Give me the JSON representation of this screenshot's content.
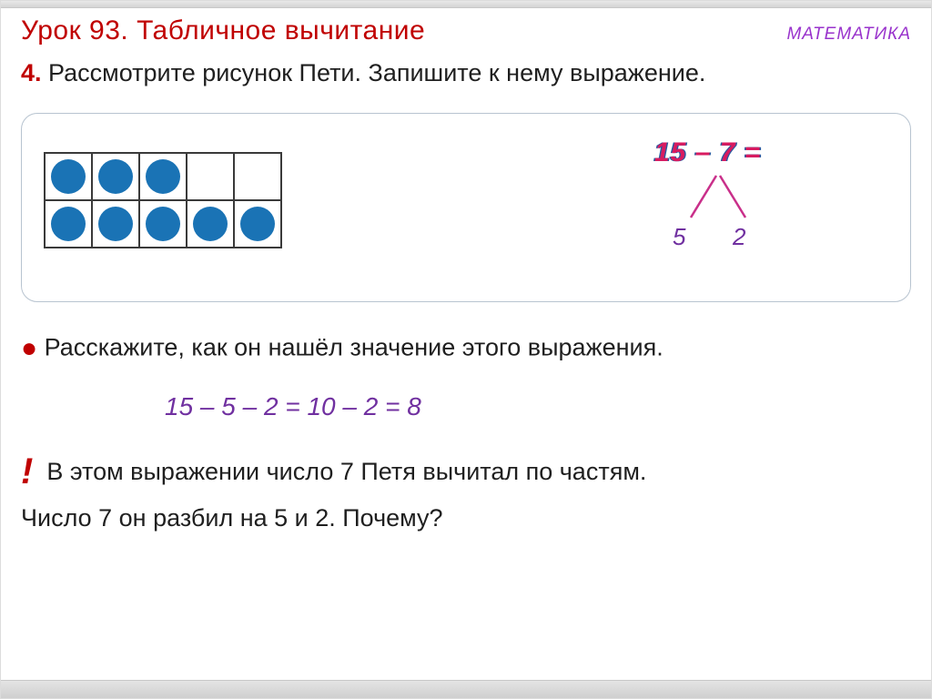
{
  "header": {
    "lesson_title": "Урок 93. Табличное вычитание",
    "subject": "МАТЕМАТИКА"
  },
  "task": {
    "number": "4.",
    "text": "Рассмотрите  рисунок Пети. Запишите к нему выражение."
  },
  "diagram": {
    "rows": [
      [
        true,
        true,
        true,
        false,
        false
      ],
      [
        true,
        true,
        true,
        true,
        true
      ]
    ],
    "dot_color": "#1a73b5",
    "border_color": "#3a3a3a",
    "cell_size": 52
  },
  "expression": {
    "main": "15 – 7 =",
    "split_a": "5",
    "split_b": "2",
    "main_color": "#d81b60",
    "shadow_color": "#2a5aa0",
    "line_color": "#c92f8a",
    "split_color": "#7030a0"
  },
  "explain": {
    "prompt": "Расскажите, как он нашёл значение этого выражения.",
    "calc": "15 – 5 – 2 =  10 – 2 =   8",
    "note_line1": "В этом выражении число 7 Петя вычитал по частям.",
    "note_line2": "Число 7 он разбил на 5 и 2. Почему?"
  },
  "colors": {
    "title_red": "#c00000",
    "subject_purple": "#9933cc",
    "calc_purple": "#7030a0",
    "panel_border": "#b8c4d0"
  }
}
